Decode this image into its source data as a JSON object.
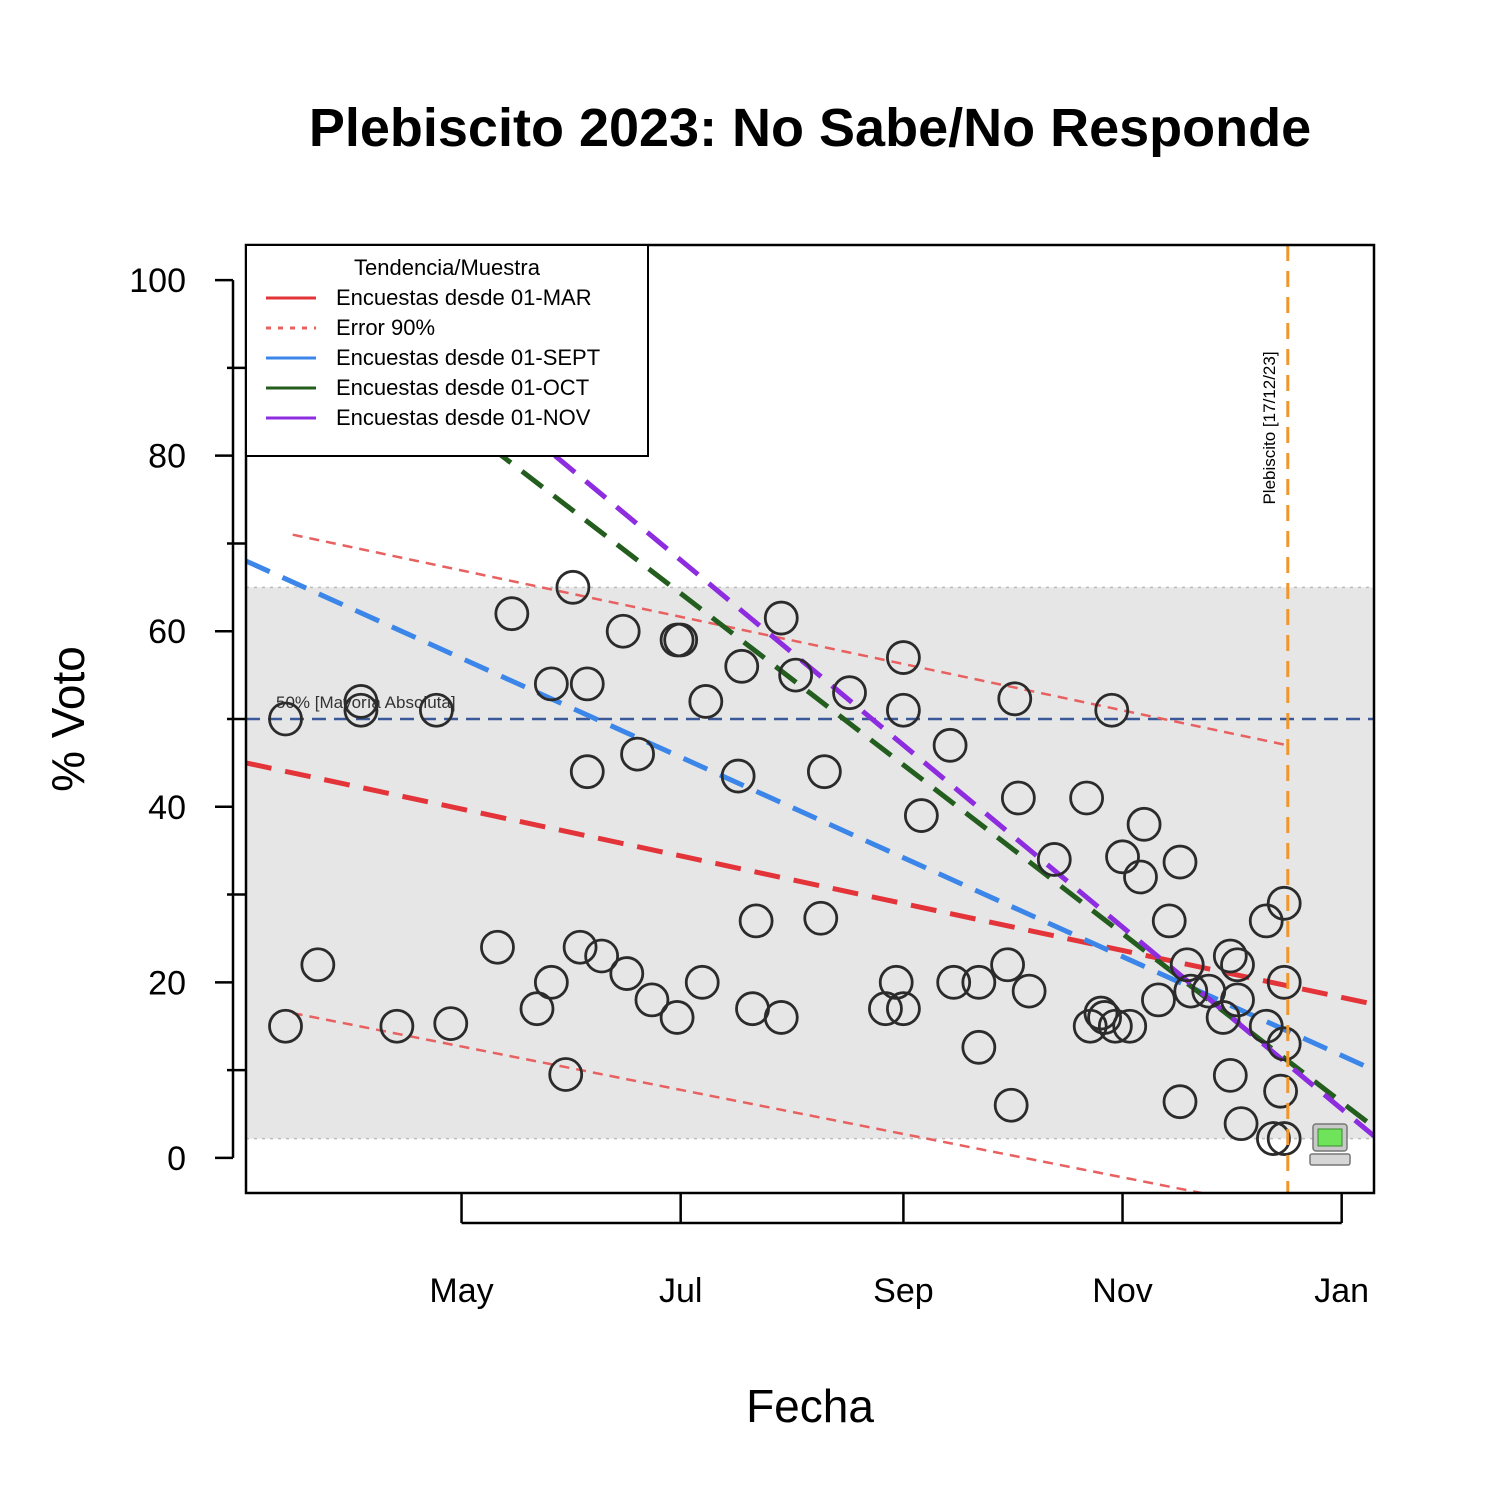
{
  "chart_data": {
    "type": "scatter",
    "title": "Plebiscito 2023: No Sabe/No Responde",
    "xlabel": "Fecha",
    "ylabel": "% Voto",
    "x_ticks": [
      "May",
      "Jul",
      "Sep",
      "Nov",
      "Jan"
    ],
    "x_tick_dates": [
      "2023-05-01",
      "2023-07-01",
      "2023-09-01",
      "2023-11-01",
      "2024-01-01"
    ],
    "xlim": [
      "2023-03-02",
      "2024-01-10"
    ],
    "ylim": [
      -4,
      104
    ],
    "y_ticks": [
      0,
      20,
      40,
      60,
      80,
      100
    ],
    "y_minor_ticks": [
      10,
      30,
      50,
      70,
      90
    ],
    "grid": false,
    "points": [
      {
        "x": "2023-03-13",
        "y": 50
      },
      {
        "x": "2023-03-13",
        "y": 15
      },
      {
        "x": "2023-03-22",
        "y": 22
      },
      {
        "x": "2023-04-03",
        "y": 52
      },
      {
        "x": "2023-04-03",
        "y": 51
      },
      {
        "x": "2023-04-13",
        "y": 15
      },
      {
        "x": "2023-04-24",
        "y": 51
      },
      {
        "x": "2023-04-28",
        "y": 15.3
      },
      {
        "x": "2023-05-11",
        "y": 24
      },
      {
        "x": "2023-05-15",
        "y": 62
      },
      {
        "x": "2023-05-22",
        "y": 17
      },
      {
        "x": "2023-05-26",
        "y": 54
      },
      {
        "x": "2023-05-26",
        "y": 20
      },
      {
        "x": "2023-05-30",
        "y": 9.5
      },
      {
        "x": "2023-06-01",
        "y": 65
      },
      {
        "x": "2023-06-03",
        "y": 24
      },
      {
        "x": "2023-06-05",
        "y": 54
      },
      {
        "x": "2023-06-05",
        "y": 44
      },
      {
        "x": "2023-06-09",
        "y": 23
      },
      {
        "x": "2023-06-15",
        "y": 60
      },
      {
        "x": "2023-06-16",
        "y": 21
      },
      {
        "x": "2023-06-19",
        "y": 46
      },
      {
        "x": "2023-06-23",
        "y": 18
      },
      {
        "x": "2023-06-30",
        "y": 59
      },
      {
        "x": "2023-07-01",
        "y": 59
      },
      {
        "x": "2023-06-30",
        "y": 16
      },
      {
        "x": "2023-07-07",
        "y": 20
      },
      {
        "x": "2023-07-08",
        "y": 52
      },
      {
        "x": "2023-07-17",
        "y": 43.5
      },
      {
        "x": "2023-07-18",
        "y": 56
      },
      {
        "x": "2023-07-21",
        "y": 17
      },
      {
        "x": "2023-07-22",
        "y": 27
      },
      {
        "x": "2023-07-29",
        "y": 16
      },
      {
        "x": "2023-07-29",
        "y": 61.5
      },
      {
        "x": "2023-08-02",
        "y": 55
      },
      {
        "x": "2023-08-10",
        "y": 44
      },
      {
        "x": "2023-08-09",
        "y": 27.3
      },
      {
        "x": "2023-08-17",
        "y": 53
      },
      {
        "x": "2023-08-27",
        "y": 17
      },
      {
        "x": "2023-08-30",
        "y": 20
      },
      {
        "x": "2023-09-01",
        "y": 57
      },
      {
        "x": "2023-09-01",
        "y": 51
      },
      {
        "x": "2023-09-01",
        "y": 17
      },
      {
        "x": "2023-09-06",
        "y": 39
      },
      {
        "x": "2023-09-14",
        "y": 47
      },
      {
        "x": "2023-09-15",
        "y": 20
      },
      {
        "x": "2023-09-22",
        "y": 20
      },
      {
        "x": "2023-09-22",
        "y": 12.6
      },
      {
        "x": "2023-09-30",
        "y": 22
      },
      {
        "x": "2023-10-01",
        "y": 6
      },
      {
        "x": "2023-10-02",
        "y": 52.3
      },
      {
        "x": "2023-10-03",
        "y": 41
      },
      {
        "x": "2023-10-06",
        "y": 19
      },
      {
        "x": "2023-10-13",
        "y": 34
      },
      {
        "x": "2023-10-22",
        "y": 41
      },
      {
        "x": "2023-10-23",
        "y": 15
      },
      {
        "x": "2023-10-26",
        "y": 16.5
      },
      {
        "x": "2023-10-27",
        "y": 16
      },
      {
        "x": "2023-10-29",
        "y": 51
      },
      {
        "x": "2023-10-30",
        "y": 15
      },
      {
        "x": "2023-11-01",
        "y": 34.3
      },
      {
        "x": "2023-11-03",
        "y": 15
      },
      {
        "x": "2023-11-06",
        "y": 32
      },
      {
        "x": "2023-11-07",
        "y": 38
      },
      {
        "x": "2023-11-11",
        "y": 18
      },
      {
        "x": "2023-11-14",
        "y": 27
      },
      {
        "x": "2023-11-17",
        "y": 33.7
      },
      {
        "x": "2023-11-17",
        "y": 6.4
      },
      {
        "x": "2023-11-19",
        "y": 22
      },
      {
        "x": "2023-11-20",
        "y": 19
      },
      {
        "x": "2023-11-25",
        "y": 19
      },
      {
        "x": "2023-11-29",
        "y": 16
      },
      {
        "x": "2023-12-01",
        "y": 23
      },
      {
        "x": "2023-12-01",
        "y": 9.4
      },
      {
        "x": "2023-12-03",
        "y": 18
      },
      {
        "x": "2023-12-03",
        "y": 22
      },
      {
        "x": "2023-12-04",
        "y": 3.9
      },
      {
        "x": "2023-12-11",
        "y": 15
      },
      {
        "x": "2023-12-11",
        "y": 27
      },
      {
        "x": "2023-12-13",
        "y": 2.2
      },
      {
        "x": "2023-12-15",
        "y": 7.6
      },
      {
        "x": "2023-12-16",
        "y": 20
      },
      {
        "x": "2023-12-16",
        "y": 2.2
      },
      {
        "x": "2023-12-16",
        "y": 13
      },
      {
        "x": "2023-12-16",
        "y": 29
      }
    ],
    "band": {
      "y_low": 2.2,
      "y_high": 65
    },
    "reference_line": {
      "y": 50,
      "label": "50% [Mayoría Absoluta]",
      "color": "#3b5998"
    },
    "event_line": {
      "x": "2023-12-17",
      "label": "Plebiscito [17/12/23]",
      "color": "#f0962a"
    },
    "trend_lines": [
      {
        "key": "mar",
        "color": "#e3343a",
        "from": {
          "x": "2023-03-02",
          "y": 45
        },
        "to": {
          "x": "2024-01-10",
          "y": 17.5
        }
      },
      {
        "key": "mar_err_hi",
        "color": "#e86060",
        "from": {
          "x": "2023-03-15",
          "y": 71
        },
        "to": {
          "x": "2023-12-17",
          "y": 47
        }
      },
      {
        "key": "mar_err_lo",
        "color": "#e86060",
        "from": {
          "x": "2023-03-15",
          "y": 16.5
        },
        "to": {
          "x": "2023-11-23",
          "y": -4
        }
      },
      {
        "key": "sept",
        "color": "#3b86e8",
        "from": {
          "x": "2023-03-02",
          "y": 68
        },
        "to": {
          "x": "2024-01-10",
          "y": 10
        }
      },
      {
        "key": "oct",
        "color": "#235e1e",
        "from": {
          "x": "2023-05-09",
          "y": 81
        },
        "to": {
          "x": "2024-01-10",
          "y": 3.5
        }
      },
      {
        "key": "nov",
        "color": "#8e2ce0",
        "from": {
          "x": "2023-05-27",
          "y": 80
        },
        "to": {
          "x": "2024-01-10",
          "y": 2.5
        }
      }
    ],
    "legend": {
      "title": "Tendencia/Muestra",
      "placement": "top-left",
      "entries": [
        {
          "label": "Encuestas desde 01-MAR",
          "color": "#e3343a",
          "style": "solid"
        },
        {
          "label": "Error 90%",
          "color": "#e86060",
          "style": "dotted"
        },
        {
          "label": "Encuestas desde 01-SEPT",
          "color": "#3b86e8",
          "style": "solid"
        },
        {
          "label": "Encuestas desde 01-OCT",
          "color": "#235e1e",
          "style": "solid"
        },
        {
          "label": "Encuestas desde 01-NOV",
          "color": "#8e2ce0",
          "style": "solid"
        }
      ]
    },
    "icon": "computer-icon"
  }
}
